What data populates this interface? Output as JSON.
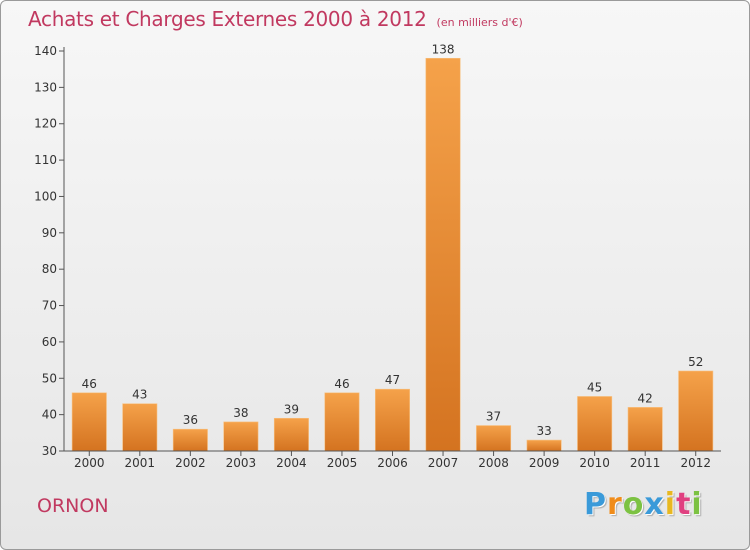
{
  "title": "Achats et Charges Externes 2000 à 2012",
  "unit": "(en milliers d'€)",
  "commune": "ORNON",
  "brand": {
    "letters": [
      "P",
      "r",
      "o",
      "x",
      "i",
      "t",
      "i"
    ],
    "colors": [
      "#3a9ad9",
      "#f08c1a",
      "#7cc242",
      "#3a9ad9",
      "#e8b820",
      "#e04080",
      "#7cc242"
    ]
  },
  "colors": {
    "bar_light": "#f5a24a",
    "bar_dark": "#d47320",
    "title": "#c13960"
  },
  "chart_data": {
    "type": "bar",
    "categories": [
      "2000",
      "2001",
      "2002",
      "2003",
      "2004",
      "2005",
      "2006",
      "2007",
      "2008",
      "2009",
      "2010",
      "2011",
      "2012"
    ],
    "values": [
      46,
      43,
      36,
      38,
      39,
      46,
      47,
      138,
      37,
      33,
      45,
      42,
      52
    ],
    "data_labels": [
      "46",
      "43",
      "36",
      "38",
      "39",
      "46",
      "47",
      "138",
      "37",
      "33",
      "45",
      "42",
      "52"
    ],
    "ylim": [
      30,
      140
    ],
    "yticks": [
      30,
      40,
      50,
      60,
      70,
      80,
      90,
      100,
      110,
      120,
      130,
      140
    ],
    "ytick_labels": [
      "30",
      "40",
      "50",
      "60",
      "70",
      "80",
      "90",
      "100",
      "110",
      "120",
      "130",
      "140"
    ],
    "grid": false,
    "legend": "none"
  }
}
